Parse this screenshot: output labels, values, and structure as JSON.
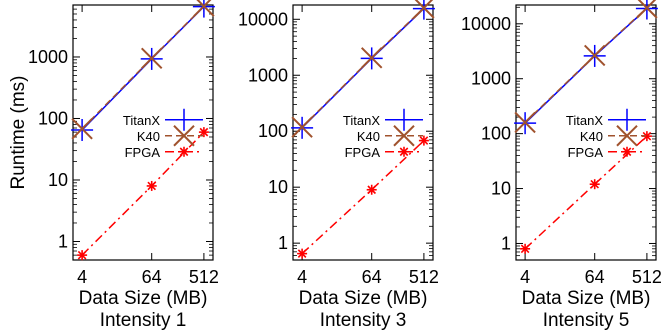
{
  "chart_data": [
    {
      "type": "line",
      "title": "Intensity 1",
      "xlabel": "Data Size (MB)",
      "ylabel": "Runtime (ms)",
      "xscale": "log2",
      "yscale": "log10",
      "x": [
        4,
        64,
        512
      ],
      "xticks": [
        "4",
        "64",
        "512"
      ],
      "yticks": [
        "1",
        "10",
        "100",
        "1000"
      ],
      "ylim": [
        0.5,
        7000
      ],
      "legend": "center-right",
      "grid": false,
      "series": [
        {
          "name": "TitanX",
          "color": "#0000ff",
          "style": "solid",
          "marker": "plus",
          "values": [
            65,
            930,
            6600
          ]
        },
        {
          "name": "K40",
          "color": "#a0522d",
          "style": "dashed",
          "marker": "x",
          "values": [
            68,
            950,
            6700
          ]
        },
        {
          "name": "FPGA",
          "color": "#ff0000",
          "style": "dashdot",
          "marker": "star",
          "values": [
            0.6,
            8,
            60
          ]
        }
      ]
    },
    {
      "type": "line",
      "title": "Intensity 3",
      "xlabel": "Data Size (MB)",
      "ylabel": "",
      "xscale": "log2",
      "yscale": "log10",
      "x": [
        4,
        64,
        512
      ],
      "xticks": [
        "4",
        "64",
        "512"
      ],
      "yticks": [
        "1",
        "10",
        "100",
        "1000",
        "10000"
      ],
      "ylim": [
        0.5,
        18000
      ],
      "legend": "center-right",
      "grid": false,
      "series": [
        {
          "name": "TitanX",
          "color": "#0000ff",
          "style": "solid",
          "marker": "plus",
          "values": [
            115,
            2000,
            15500
          ]
        },
        {
          "name": "K40",
          "color": "#a0522d",
          "style": "dashed",
          "marker": "x",
          "values": [
            118,
            2050,
            16000
          ]
        },
        {
          "name": "FPGA",
          "color": "#ff0000",
          "style": "dashdot",
          "marker": "star",
          "values": [
            0.65,
            9,
            68
          ]
        }
      ]
    },
    {
      "type": "line",
      "title": "Intensity 5",
      "xlabel": "Data Size (MB)",
      "ylabel": "",
      "xscale": "log2",
      "yscale": "log10",
      "x": [
        4,
        64,
        512
      ],
      "xticks": [
        "4",
        "64",
        "512"
      ],
      "yticks": [
        "1",
        "10",
        "100",
        "1000",
        "10000"
      ],
      "ylim": [
        0.5,
        22000
      ],
      "legend": "center-right",
      "grid": false,
      "series": [
        {
          "name": "TitanX",
          "color": "#0000ff",
          "style": "solid",
          "marker": "plus",
          "values": [
            155,
            2600,
            19000
          ]
        },
        {
          "name": "K40",
          "color": "#a0522d",
          "style": "dashed",
          "marker": "x",
          "values": [
            160,
            2650,
            19500
          ]
        },
        {
          "name": "FPGA",
          "color": "#ff0000",
          "style": "dashdot",
          "marker": "star",
          "values": [
            0.8,
            12,
            90
          ]
        }
      ]
    }
  ]
}
